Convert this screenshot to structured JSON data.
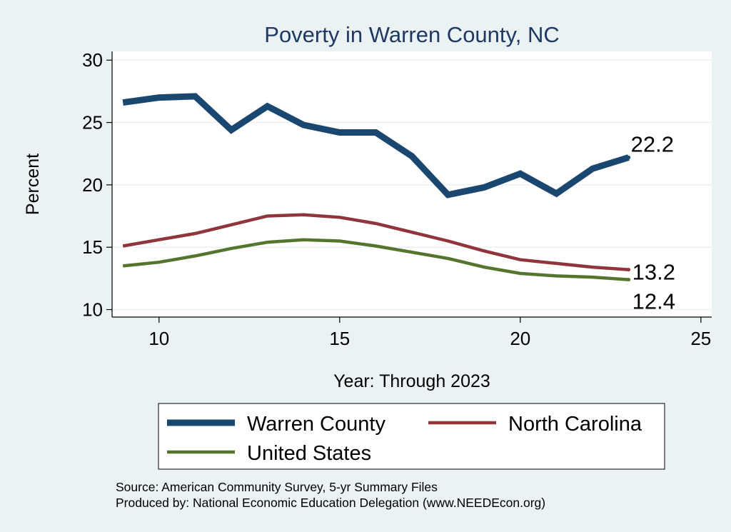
{
  "chart_data": {
    "type": "line",
    "title": "Poverty in Warren County, NC",
    "xlabel": "Year: Through 2023",
    "ylabel": "Percent",
    "xlim": [
      8.7,
      25.3
    ],
    "ylim": [
      9.4,
      30.7
    ],
    "xticks": [
      10,
      15,
      20,
      25
    ],
    "yticks": [
      10,
      15,
      20,
      25,
      30
    ],
    "grid": true,
    "x": [
      9,
      10,
      11,
      12,
      13,
      14,
      15,
      16,
      17,
      18,
      19,
      20,
      21,
      22,
      23
    ],
    "series": [
      {
        "name": "Warren County",
        "color": "#1a476f",
        "values": [
          26.6,
          27.0,
          27.1,
          24.4,
          26.3,
          24.8,
          24.2,
          24.2,
          22.3,
          19.2,
          19.8,
          20.9,
          19.3,
          21.3,
          22.2
        ],
        "end_label": "22.2"
      },
      {
        "name": "North Carolina",
        "color": "#90353b",
        "values": [
          15.1,
          15.6,
          16.1,
          16.8,
          17.5,
          17.6,
          17.4,
          16.9,
          16.2,
          15.5,
          14.7,
          14.0,
          13.7,
          13.4,
          13.2
        ],
        "end_label": "13.2"
      },
      {
        "name": "United States",
        "color": "#55752f",
        "values": [
          13.5,
          13.8,
          14.3,
          14.9,
          15.4,
          15.6,
          15.5,
          15.1,
          14.6,
          14.1,
          13.4,
          12.9,
          12.7,
          12.6,
          12.4
        ],
        "end_label": "12.4"
      }
    ],
    "legend": {
      "placement": "bottom",
      "labels": [
        "Warren County",
        "North Carolina",
        "United States"
      ]
    },
    "notes": [
      "Source: American Community Survey, 5-yr Summary Files",
      "Produced by: National Economic Education Delegation (www.NEEDEcon.org)"
    ]
  },
  "colors": {
    "background": "#eaf2f3",
    "plot_background": "#ffffff",
    "grid": "#eaf2f3",
    "title": "#1f3864"
  }
}
